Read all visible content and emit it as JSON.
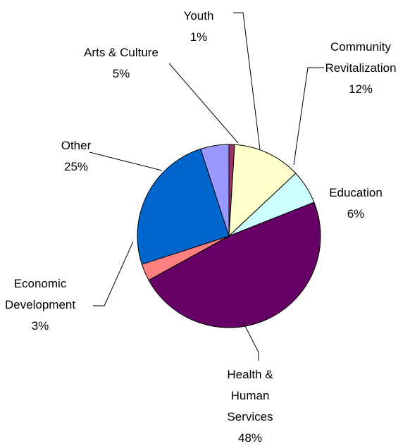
{
  "chart_data": {
    "type": "pie",
    "title": "",
    "unit": "%",
    "slices": [
      {
        "label_lines": [
          "Youth"
        ],
        "category": "Youth",
        "value": 1,
        "value_label": "1%",
        "color": "#993366"
      },
      {
        "label_lines": [
          "Community",
          "Revitalization"
        ],
        "category": "Community Revitalization",
        "value": 12,
        "value_label": "12%",
        "color": "#FFFFCC"
      },
      {
        "label_lines": [
          "Education"
        ],
        "category": "Education",
        "value": 6,
        "value_label": "6%",
        "color": "#CCFFFF"
      },
      {
        "label_lines": [
          "Health &",
          "Human",
          "Services"
        ],
        "category": "Health & Human Services",
        "value": 48,
        "value_label": "48%",
        "color": "#660066"
      },
      {
        "label_lines": [
          "Economic",
          "Development"
        ],
        "category": "Economic Development",
        "value": 3,
        "value_label": "3%",
        "color": "#FF8080"
      },
      {
        "label_lines": [
          "Other"
        ],
        "category": "Other",
        "value": 25,
        "value_label": "25%",
        "color": "#0066CC"
      },
      {
        "label_lines": [
          "Arts & Culture"
        ],
        "category": "Arts & Culture",
        "value": 5,
        "value_label": "5%",
        "color": "#9999FF"
      }
    ],
    "legend": "none",
    "labels_placement": "outside-with-leader-lines"
  }
}
